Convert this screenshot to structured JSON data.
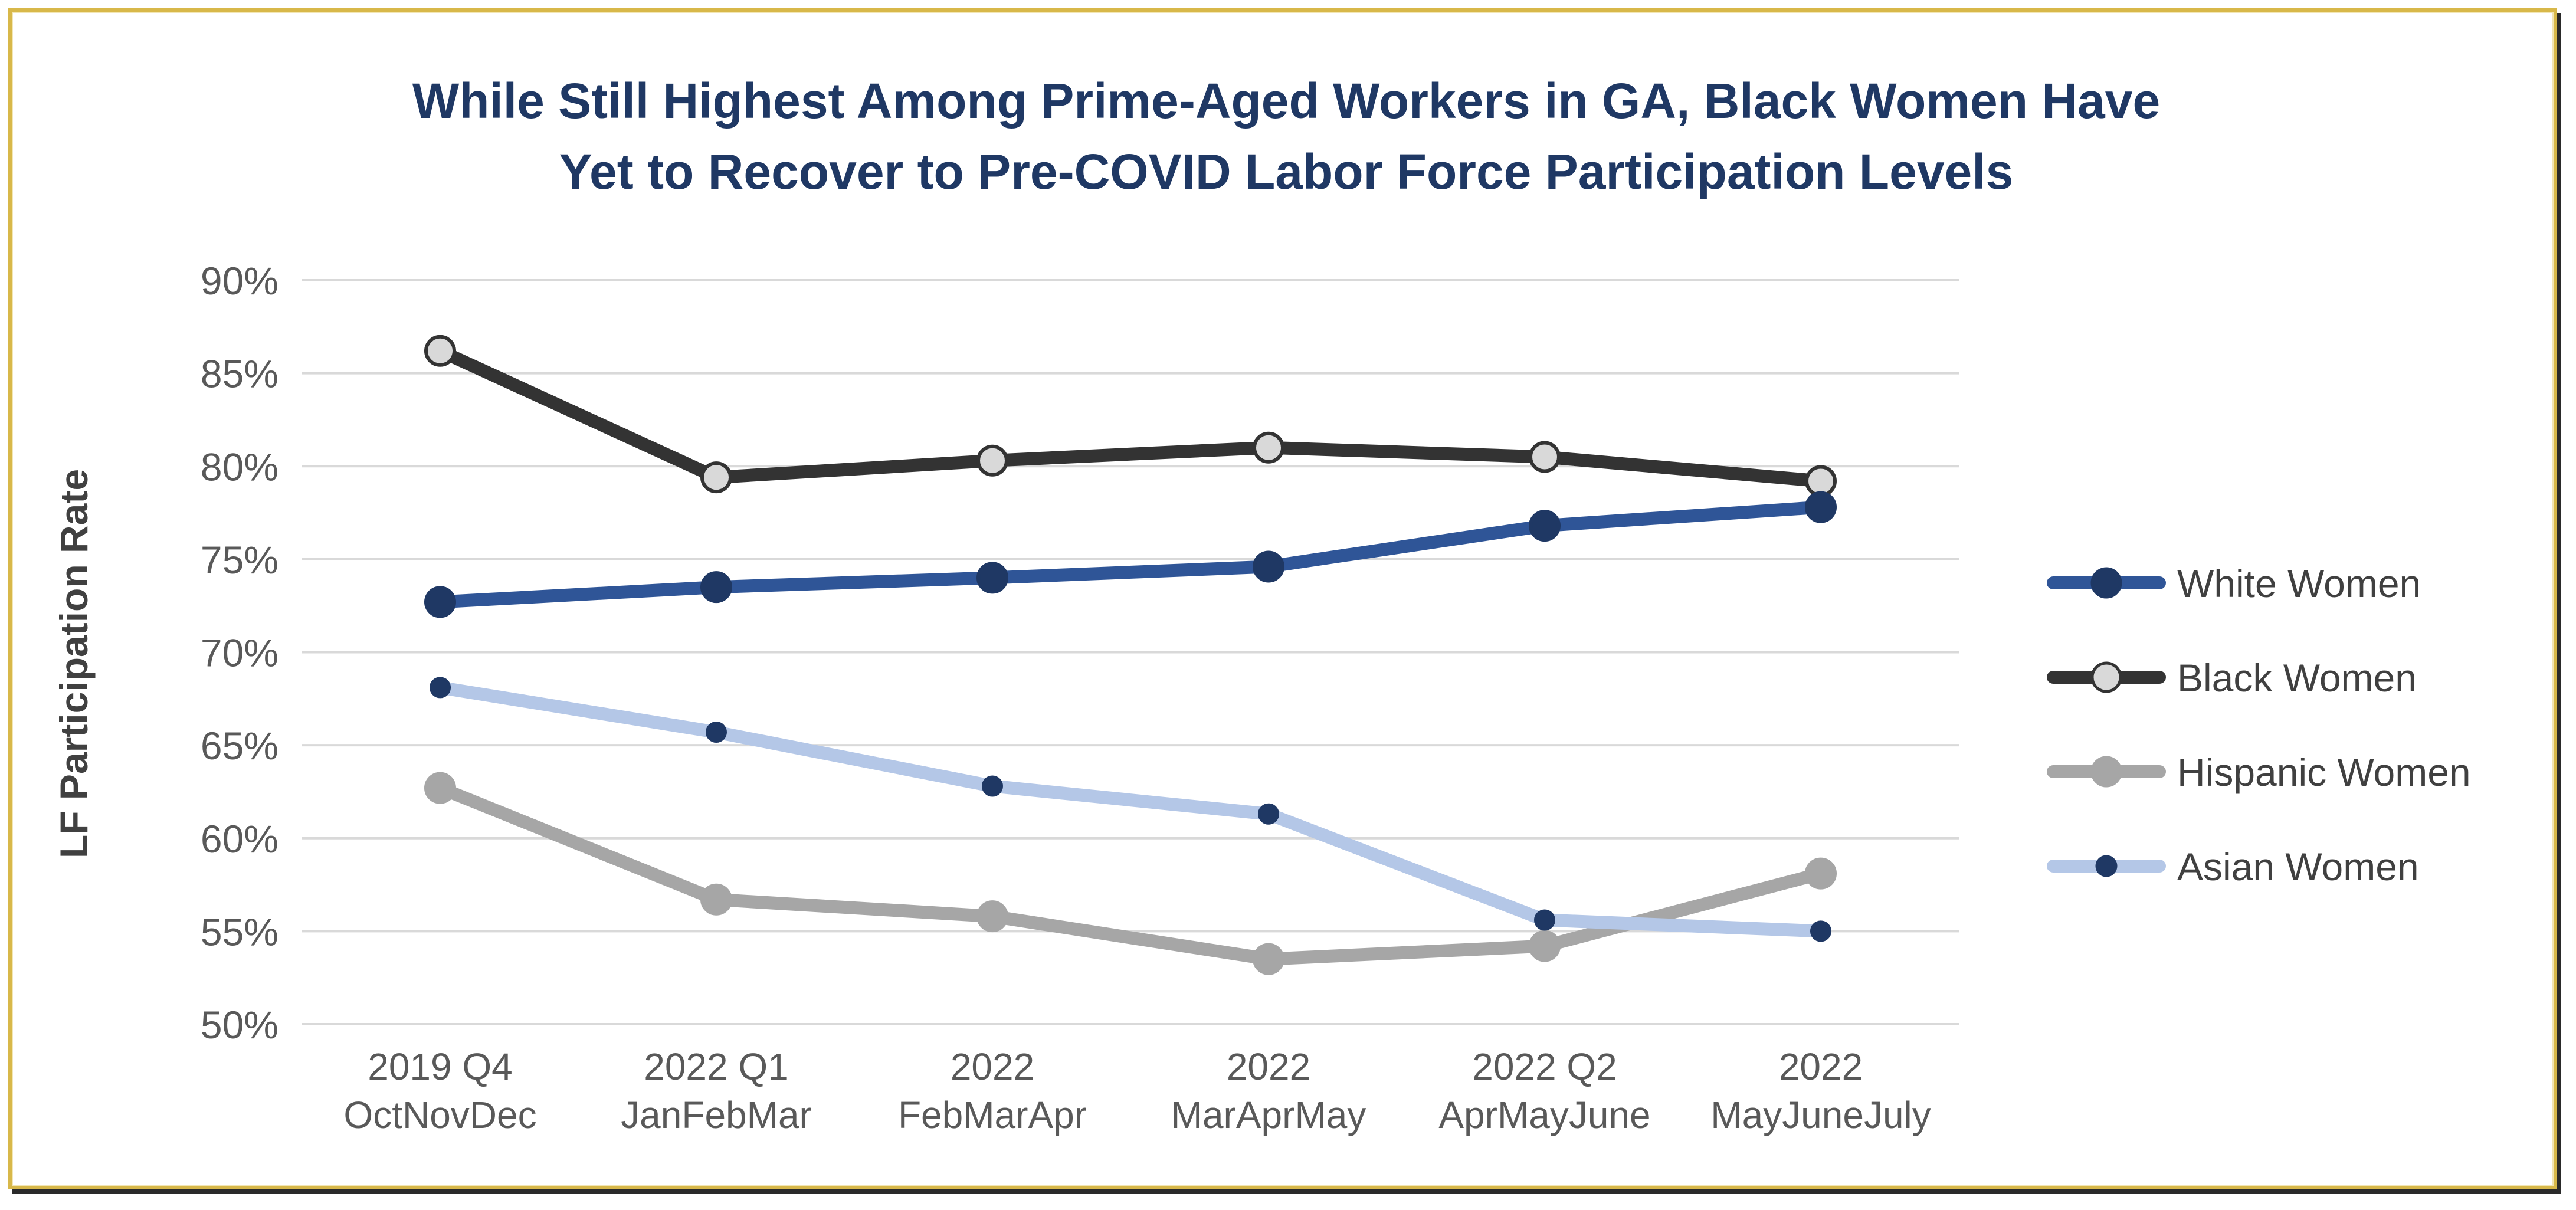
{
  "chart_data": {
    "type": "line",
    "title_lines": [
      "While Still Highest Among Prime-Aged Workers in GA, Black Women Have",
      "Yet to Recover to Pre-COVID Labor Force Participation Levels"
    ],
    "ylabel": "LF Participation Rate",
    "xlabel": "",
    "ylim": [
      50,
      90
    ],
    "yticks": [
      "50%",
      "55%",
      "60%",
      "65%",
      "70%",
      "75%",
      "80%",
      "85%",
      "90%"
    ],
    "ytick_values": [
      50,
      55,
      60,
      65,
      70,
      75,
      80,
      85,
      90
    ],
    "categories": [
      [
        "2019 Q4",
        "OctNovDec"
      ],
      [
        "2022 Q1",
        "JanFebMar"
      ],
      [
        "2022",
        "FebMarApr"
      ],
      [
        "2022",
        "MarAprMay"
      ],
      [
        "2022 Q2",
        "AprMayJune"
      ],
      [
        "2022",
        "MayJuneJuly"
      ]
    ],
    "grid": true,
    "legend_position": "right",
    "series": [
      {
        "name": "White Women",
        "values": [
          72.7,
          73.5,
          74.0,
          74.6,
          76.8,
          77.8
        ],
        "color": "#2f5597",
        "marker_fill": "#1f3864",
        "marker_stroke": "#1f3864",
        "marker": "large"
      },
      {
        "name": "Black Women",
        "values": [
          86.2,
          79.4,
          80.3,
          81.0,
          80.5,
          79.2
        ],
        "color": "#333333",
        "marker_fill": "#d9d9d9",
        "marker_stroke": "#333333",
        "marker": "large"
      },
      {
        "name": "Hispanic Women",
        "values": [
          62.7,
          56.7,
          55.8,
          53.5,
          54.2,
          58.1
        ],
        "color": "#a6a6a6",
        "marker_fill": "#a6a6a6",
        "marker_stroke": "#a6a6a6",
        "marker": "large"
      },
      {
        "name": "Asian Women",
        "values": [
          68.1,
          65.7,
          62.8,
          61.3,
          55.6,
          55.0
        ],
        "color": "#b4c7e7",
        "marker_fill": "#1f3864",
        "marker_stroke": "#1f3864",
        "marker": "small"
      }
    ]
  }
}
